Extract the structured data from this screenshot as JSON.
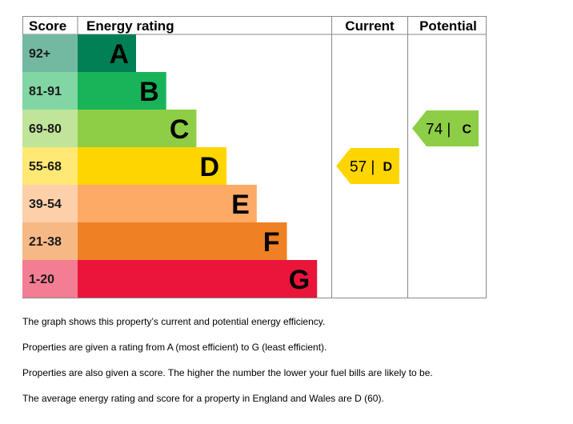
{
  "chart_data": {
    "type": "bar",
    "headers": {
      "score": "Score",
      "rating": "Energy rating",
      "current": "Current",
      "potential": "Potential"
    },
    "bands": [
      {
        "range": "92+",
        "letter": "A",
        "color": "#008054"
      },
      {
        "range": "81-91",
        "letter": "B",
        "color": "#19b459"
      },
      {
        "range": "69-80",
        "letter": "C",
        "color": "#8dce46"
      },
      {
        "range": "55-68",
        "letter": "D",
        "color": "#ffd500"
      },
      {
        "range": "39-54",
        "letter": "E",
        "color": "#fcaa65"
      },
      {
        "range": "21-38",
        "letter": "F",
        "color": "#ef8023"
      },
      {
        "range": "1-20",
        "letter": "G",
        "color": "#e9153b"
      }
    ],
    "current": {
      "score": 57,
      "letter": "D",
      "text": "57 |",
      "color": "#ffd500"
    },
    "potential": {
      "score": 74,
      "letter": "C",
      "text": "74 |",
      "color": "#8dce46"
    }
  },
  "notes": [
    "The graph shows this property’s current and potential energy efficiency.",
    "Properties are given a rating from A (most efficient) to G (least efficient).",
    "Properties are also given a score. The higher the number the lower your fuel bills are likely to be.",
    "The average energy rating and score for a property in England and Wales are D (60)."
  ]
}
